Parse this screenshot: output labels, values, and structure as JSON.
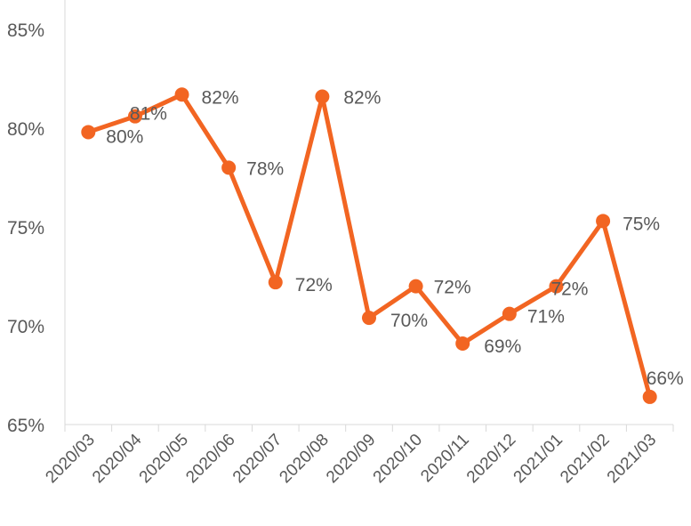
{
  "chart_data": {
    "type": "line",
    "categories": [
      "2020/03",
      "2020/04",
      "2020/05",
      "2020/06",
      "2020/07",
      "2020/08",
      "2020/09",
      "2020/10",
      "2020/11",
      "2020/12",
      "2021/01",
      "2021/02",
      "2021/03"
    ],
    "series": [
      {
        "values": [
          79.8,
          80.6,
          81.7,
          78.0,
          72.2,
          81.6,
          70.4,
          72.0,
          69.1,
          70.6,
          72.0,
          75.3,
          66.4
        ],
        "labels": [
          "80%",
          "81%",
          "82%",
          "78%",
          "72%",
          "82%",
          "70%",
          "72%",
          "69%",
          "71%",
          "72%",
          "75%",
          "66%"
        ],
        "color": "#F26522"
      }
    ],
    "ylim": [
      65,
      85
    ],
    "yticks": [
      65,
      70,
      75,
      80,
      85
    ],
    "ytick_labels": [
      "65%",
      "70%",
      "75%",
      "80%",
      "85%"
    ],
    "grid": false,
    "legend": "none"
  }
}
